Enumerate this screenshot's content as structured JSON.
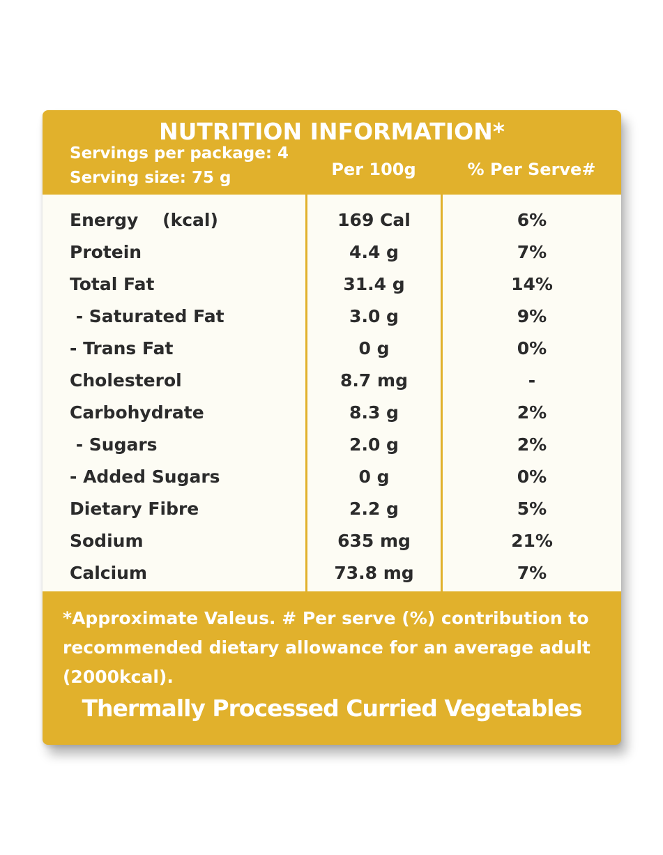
{
  "panel": {
    "title": "NUTRITION INFORMATION*",
    "servings_per_package": "Servings per package: 4",
    "serving_size": "Serving size: 75 g",
    "col_per100": "Per 100g",
    "col_per_serve": "% Per Serve#"
  },
  "rows": [
    {
      "name": "Energy    (kcal)",
      "per100": "169 Cal",
      "pct": "6%"
    },
    {
      "name": "Protein",
      "per100": "4.4 g",
      "pct": "7%"
    },
    {
      "name": "Total Fat",
      "per100": "31.4 g",
      "pct": "14%"
    },
    {
      "name": " - Saturated Fat",
      "per100": "3.0 g",
      "pct": "9%"
    },
    {
      "name": "- Trans Fat",
      "per100": "0 g",
      "pct": "0%"
    },
    {
      "name": "Cholesterol",
      "per100": "8.7 mg",
      "pct": "-"
    },
    {
      "name": "Carbohydrate",
      "per100": "8.3 g",
      "pct": "2%"
    },
    {
      "name": " - Sugars",
      "per100": "2.0 g",
      "pct": "2%"
    },
    {
      "name": "- Added Sugars",
      "per100": "0 g",
      "pct": "0%"
    },
    {
      "name": "Dietary Fibre",
      "per100": "2.2 g",
      "pct": "5%"
    },
    {
      "name": "Sodium",
      "per100": "635 mg",
      "pct": "21%"
    },
    {
      "name": "Calcium",
      "per100": "73.8 mg",
      "pct": "7%"
    }
  ],
  "footnote": "*Approximate Valeus. # Per serve (%) contribution to recommended dietary allowance for an average adult (2000kcal).",
  "product_name": "Thermally Processed Curried Vegetables",
  "colors": {
    "panel": "#e1b12c",
    "table_bg": "#fdfcf4",
    "text_dark": "#2b2b2b",
    "text_light": "#ffffff"
  }
}
